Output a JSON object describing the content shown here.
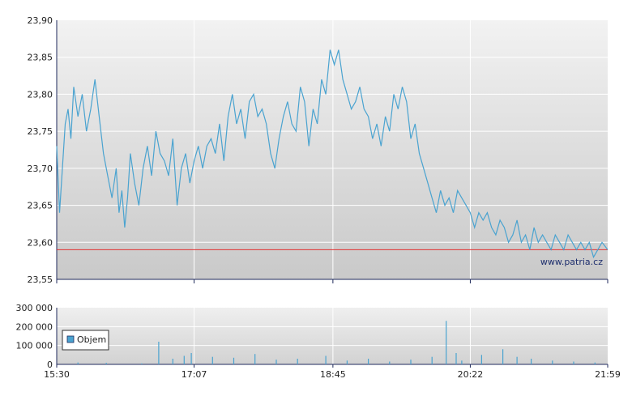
{
  "chart_data": [
    {
      "type": "line",
      "ylim": [
        23.55,
        23.9
      ],
      "y_ticks": [
        "23,90",
        "23,85",
        "23,80",
        "23,75",
        "23,70",
        "23,65",
        "23,60",
        "23,55"
      ],
      "y_tick_values": [
        23.9,
        23.85,
        23.8,
        23.75,
        23.7,
        23.65,
        23.6,
        23.55
      ],
      "x_ticks": [
        "15:30",
        "17:07",
        "18:45",
        "20:22",
        "21:59"
      ],
      "xlim": [
        "15:30",
        "21:59"
      ],
      "grid": true,
      "colors": {
        "line": "#4aa3d0",
        "reference": "#e03030",
        "background_top": "#f2f2f2",
        "background_bottom": "#c9c9c9"
      },
      "reference_line": 23.59,
      "watermark": "www.patria.cz",
      "series": [
        {
          "x": [
            "15:30",
            "15:32",
            "15:34",
            "15:36",
            "15:38",
            "15:40",
            "15:42",
            "15:45",
            "15:48",
            "15:51",
            "15:54",
            "15:57",
            "16:00",
            "16:03",
            "16:06",
            "16:09",
            "16:12",
            "16:14",
            "16:16",
            "16:18",
            "16:20",
            "16:22",
            "16:25",
            "16:28",
            "16:31",
            "16:34",
            "16:37",
            "16:40",
            "16:43",
            "16:46",
            "16:49",
            "16:52",
            "16:55",
            "16:58",
            "17:01",
            "17:04",
            "17:07",
            "17:10",
            "17:13",
            "17:16",
            "17:19",
            "17:22",
            "17:25",
            "17:28",
            "17:31",
            "17:34",
            "17:37",
            "17:40",
            "17:43",
            "17:46",
            "17:49",
            "17:52",
            "17:55",
            "17:58",
            "18:01",
            "18:04",
            "18:07",
            "18:10",
            "18:13",
            "18:16",
            "18:19",
            "18:22",
            "18:25",
            "18:28",
            "18:31",
            "18:34",
            "18:37",
            "18:40",
            "18:43",
            "18:46",
            "18:49",
            "18:52",
            "18:55",
            "18:58",
            "19:01",
            "19:04",
            "19:07",
            "19:10",
            "19:13",
            "19:16",
            "19:19",
            "19:22",
            "19:25",
            "19:28",
            "19:31",
            "19:34",
            "19:37",
            "19:40",
            "19:43",
            "19:46",
            "19:49",
            "19:52",
            "19:55",
            "19:58",
            "20:01",
            "20:04",
            "20:07",
            "20:10",
            "20:13",
            "20:16",
            "20:19",
            "20:22",
            "20:25",
            "20:28",
            "20:31",
            "20:34",
            "20:37",
            "20:40",
            "20:43",
            "20:46",
            "20:49",
            "20:52",
            "20:55",
            "20:58",
            "21:01",
            "21:04",
            "21:07",
            "21:10",
            "21:13",
            "21:16",
            "21:19",
            "21:22",
            "21:25",
            "21:28",
            "21:31",
            "21:34",
            "21:37",
            "21:40",
            "21:43",
            "21:46",
            "21:49",
            "21:52",
            "21:55",
            "21:59"
          ],
          "values": [
            23.73,
            23.64,
            23.7,
            23.76,
            23.78,
            23.74,
            23.81,
            23.77,
            23.8,
            23.75,
            23.78,
            23.82,
            23.77,
            23.72,
            23.69,
            23.66,
            23.7,
            23.64,
            23.67,
            23.62,
            23.66,
            23.72,
            23.68,
            23.65,
            23.7,
            23.73,
            23.69,
            23.75,
            23.72,
            23.71,
            23.69,
            23.74,
            23.65,
            23.7,
            23.72,
            23.68,
            23.71,
            23.73,
            23.7,
            23.73,
            23.74,
            23.72,
            23.76,
            23.71,
            23.77,
            23.8,
            23.76,
            23.78,
            23.74,
            23.79,
            23.8,
            23.77,
            23.78,
            23.76,
            23.72,
            23.7,
            23.74,
            23.77,
            23.79,
            23.76,
            23.75,
            23.81,
            23.79,
            23.73,
            23.78,
            23.76,
            23.82,
            23.8,
            23.86,
            23.84,
            23.86,
            23.82,
            23.8,
            23.78,
            23.79,
            23.81,
            23.78,
            23.77,
            23.74,
            23.76,
            23.73,
            23.77,
            23.75,
            23.8,
            23.78,
            23.81,
            23.79,
            23.74,
            23.76,
            23.72,
            23.7,
            23.68,
            23.66,
            23.64,
            23.67,
            23.65,
            23.66,
            23.64,
            23.67,
            23.66,
            23.65,
            23.64,
            23.62,
            23.64,
            23.63,
            23.64,
            23.62,
            23.61,
            23.63,
            23.62,
            23.6,
            23.61,
            23.63,
            23.6,
            23.61,
            23.59,
            23.62,
            23.6,
            23.61,
            23.6,
            23.59,
            23.61,
            23.6,
            23.59,
            23.61,
            23.6,
            23.59,
            23.6,
            23.59,
            23.6,
            23.58,
            23.59,
            23.6,
            23.59
          ]
        }
      ]
    },
    {
      "type": "bar",
      "ylim": [
        0,
        300000
      ],
      "y_ticks": [
        "300 000",
        "200 000",
        "100 000",
        "0"
      ],
      "y_tick_values": [
        300000,
        200000,
        100000,
        0
      ],
      "x_ticks": [
        "15:30",
        "17:07",
        "18:45",
        "20:22",
        "21:59"
      ],
      "legend": "Objem",
      "legend_position": "left",
      "colors": {
        "bar": "#4aa3d0"
      },
      "series": [
        {
          "name": "Objem",
          "x": [
            "15:45",
            "16:05",
            "16:30",
            "16:42",
            "16:52",
            "17:00",
            "17:05",
            "17:20",
            "17:35",
            "17:50",
            "18:05",
            "18:20",
            "18:40",
            "18:55",
            "19:10",
            "19:25",
            "19:40",
            "19:55",
            "20:05",
            "20:12",
            "20:16",
            "20:30",
            "20:45",
            "20:55",
            "21:05",
            "21:20",
            "21:35",
            "21:50"
          ],
          "values": [
            10000,
            8000,
            5000,
            120000,
            30000,
            45000,
            60000,
            40000,
            35000,
            55000,
            25000,
            30000,
            45000,
            20000,
            30000,
            15000,
            25000,
            40000,
            230000,
            60000,
            20000,
            50000,
            80000,
            40000,
            30000,
            20000,
            15000,
            10000
          ]
        }
      ]
    }
  ]
}
